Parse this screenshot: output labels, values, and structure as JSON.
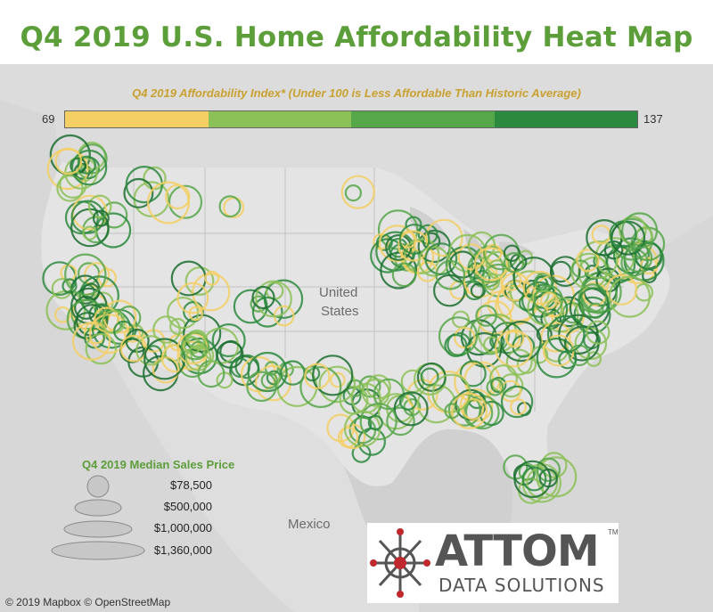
{
  "title": "Q4 2019 U.S. Home Affordability Heat Map",
  "index_legend": {
    "caption": "Q4 2019 Affordability Index* (Under 100 is Less Affordable Than Historic Average)",
    "min_label": "69",
    "max_label": "137",
    "colors": [
      "#f5cf63",
      "#8cc157",
      "#56a64a",
      "#2b8a3e",
      "#1b6e30"
    ]
  },
  "map_labels": {
    "country_line1": "United",
    "country_line2": "States",
    "mexico": "Mexico"
  },
  "size_legend": {
    "title": "Q4 2019 Median Sales Price",
    "items": [
      "$78,500",
      "$500,000",
      "$1,000,000",
      "$1,360,000"
    ]
  },
  "logo": {
    "wordmark": "ATTOM",
    "tm": "TM",
    "subtitle": "DATA SOLUTIONS"
  },
  "credits": "© 2019 Mapbox  © OpenStreetMap"
}
